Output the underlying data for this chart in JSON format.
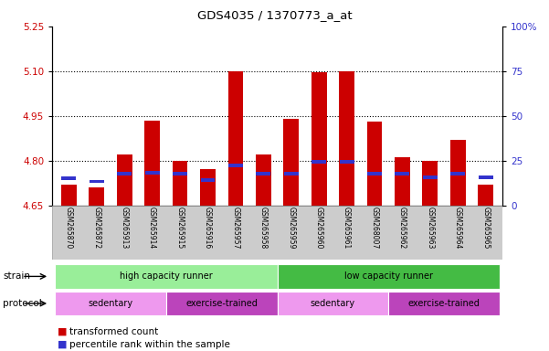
{
  "title": "GDS4035 / 1370773_a_at",
  "samples": [
    "GSM265870",
    "GSM265872",
    "GSM265913",
    "GSM265914",
    "GSM265915",
    "GSM265916",
    "GSM265957",
    "GSM265958",
    "GSM265959",
    "GSM265960",
    "GSM265961",
    "GSM268007",
    "GSM265962",
    "GSM265963",
    "GSM265964",
    "GSM265965"
  ],
  "red_values": [
    4.72,
    4.71,
    4.82,
    4.935,
    4.8,
    4.77,
    5.1,
    4.82,
    4.94,
    5.095,
    5.1,
    4.93,
    4.81,
    4.8,
    4.87,
    4.72
  ],
  "blue_values": [
    4.74,
    4.73,
    4.755,
    4.76,
    4.755,
    4.735,
    4.785,
    4.755,
    4.755,
    4.795,
    4.795,
    4.755,
    4.755,
    4.745,
    4.755,
    4.745
  ],
  "y_min": 4.65,
  "y_max": 5.25,
  "y_ticks_left": [
    4.65,
    4.8,
    4.95,
    5.1,
    5.25
  ],
  "y_ticks_right": [
    0,
    25,
    50,
    75,
    100
  ],
  "bar_color": "#cc0000",
  "blue_color": "#3333cc",
  "bg_color": "#ffffff",
  "strain_groups": [
    {
      "label": "high capacity runner",
      "start": 0,
      "end": 7,
      "color": "#99ee99"
    },
    {
      "label": "low capacity runner",
      "start": 8,
      "end": 15,
      "color": "#44bb44"
    }
  ],
  "protocol_groups": [
    {
      "label": "sedentary",
      "start": 0,
      "end": 3,
      "color": "#ee99ee"
    },
    {
      "label": "exercise-trained",
      "start": 4,
      "end": 7,
      "color": "#bb44bb"
    },
    {
      "label": "sedentary",
      "start": 8,
      "end": 11,
      "color": "#ee99ee"
    },
    {
      "label": "exercise-trained",
      "start": 12,
      "end": 15,
      "color": "#bb44bb"
    }
  ],
  "legend_items": [
    {
      "color": "#cc0000",
      "label": "transformed count"
    },
    {
      "color": "#3333cc",
      "label": "percentile rank within the sample"
    }
  ],
  "left_axis_color": "#cc0000",
  "right_axis_color": "#3333cc",
  "grid_lines": [
    4.8,
    4.95,
    5.1
  ],
  "tick_fontsize": 7.5,
  "sample_fontsize": 5.5,
  "bar_width": 0.55
}
